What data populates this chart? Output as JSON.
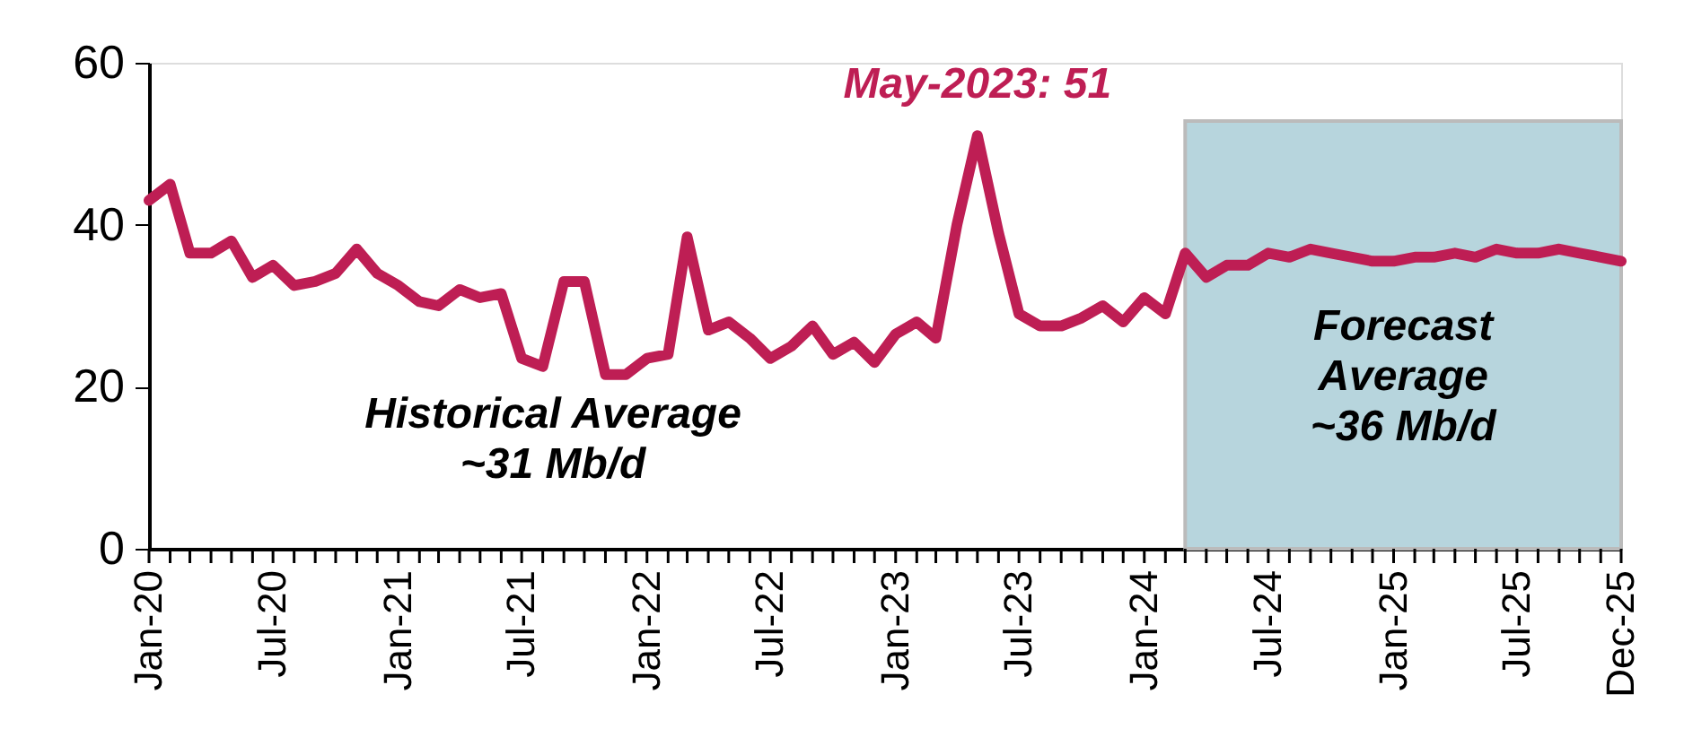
{
  "chart_data": {
    "type": "line",
    "x": [
      "2020-01",
      "2020-02",
      "2020-03",
      "2020-04",
      "2020-05",
      "2020-06",
      "2020-07",
      "2020-08",
      "2020-09",
      "2020-10",
      "2020-11",
      "2020-12",
      "2021-01",
      "2021-02",
      "2021-03",
      "2021-04",
      "2021-05",
      "2021-06",
      "2021-07",
      "2021-08",
      "2021-09",
      "2021-10",
      "2021-11",
      "2021-12",
      "2022-01",
      "2022-02",
      "2022-03",
      "2022-04",
      "2022-05",
      "2022-06",
      "2022-07",
      "2022-08",
      "2022-09",
      "2022-10",
      "2022-11",
      "2022-12",
      "2023-01",
      "2023-02",
      "2023-03",
      "2023-04",
      "2023-05",
      "2023-06",
      "2023-07",
      "2023-08",
      "2023-09",
      "2023-10",
      "2023-11",
      "2023-12",
      "2024-01",
      "2024-02",
      "2024-03",
      "2024-04",
      "2024-05",
      "2024-06",
      "2024-07",
      "2024-08",
      "2024-09",
      "2024-10",
      "2024-11",
      "2024-12",
      "2025-01",
      "2025-02",
      "2025-03",
      "2025-04",
      "2025-05",
      "2025-06",
      "2025-07",
      "2025-08",
      "2025-09",
      "2025-10",
      "2025-11",
      "2025-12"
    ],
    "series": [
      {
        "color": "#be1e54",
        "values": [
          43,
          45,
          36.5,
          36.5,
          38,
          33.5,
          35,
          32.5,
          33,
          34,
          37,
          34,
          32.5,
          30.5,
          30,
          32,
          31,
          31.5,
          23.5,
          22.5,
          33,
          33,
          21.5,
          21.5,
          23.5,
          24,
          38.5,
          27,
          28,
          26,
          23.5,
          25,
          27.5,
          24,
          25.5,
          23,
          26.5,
          28,
          26,
          40,
          51,
          39,
          29,
          27.5,
          27.5,
          28.5,
          30,
          28,
          31,
          29,
          36.5,
          33.5,
          35,
          35,
          36.5,
          36,
          37,
          36.5,
          36,
          35.5,
          35.5,
          36,
          36,
          36.5,
          36,
          37,
          36.5,
          36.5,
          37,
          36.5,
          36,
          35.5
        ]
      }
    ],
    "ylim": [
      0,
      60
    ],
    "yticks": [
      0,
      20,
      40,
      60
    ],
    "xlim": [
      "2020-01",
      "2025-12"
    ],
    "xticks": [
      {
        "value": "2020-01",
        "label": "Jan-20"
      },
      {
        "value": "2020-02",
        "label": null
      },
      {
        "value": "2020-03",
        "label": null
      },
      {
        "value": "2020-04",
        "label": null
      },
      {
        "value": "2020-05",
        "label": null
      },
      {
        "value": "2020-06",
        "label": null
      },
      {
        "value": "2020-07",
        "label": "Jul-20"
      },
      {
        "value": "2020-08",
        "label": null
      },
      {
        "value": "2020-09",
        "label": null
      },
      {
        "value": "2020-10",
        "label": null
      },
      {
        "value": "2020-11",
        "label": null
      },
      {
        "value": "2020-12",
        "label": null
      },
      {
        "value": "2021-01",
        "label": "Jan-21"
      },
      {
        "value": "2021-02",
        "label": null
      },
      {
        "value": "2021-03",
        "label": null
      },
      {
        "value": "2021-04",
        "label": null
      },
      {
        "value": "2021-05",
        "label": null
      },
      {
        "value": "2021-06",
        "label": null
      },
      {
        "value": "2021-07",
        "label": "Jul-21"
      },
      {
        "value": "2021-08",
        "label": null
      },
      {
        "value": "2021-09",
        "label": null
      },
      {
        "value": "2021-10",
        "label": null
      },
      {
        "value": "2021-11",
        "label": null
      },
      {
        "value": "2021-12",
        "label": null
      },
      {
        "value": "2022-01",
        "label": "Jan-22"
      },
      {
        "value": "2022-02",
        "label": null
      },
      {
        "value": "2022-03",
        "label": null
      },
      {
        "value": "2022-04",
        "label": null
      },
      {
        "value": "2022-05",
        "label": null
      },
      {
        "value": "2022-06",
        "label": null
      },
      {
        "value": "2022-07",
        "label": "Jul-22"
      },
      {
        "value": "2022-08",
        "label": null
      },
      {
        "value": "2022-09",
        "label": null
      },
      {
        "value": "2022-10",
        "label": null
      },
      {
        "value": "2022-11",
        "label": null
      },
      {
        "value": "2022-12",
        "label": null
      },
      {
        "value": "2023-01",
        "label": "Jan-23"
      },
      {
        "value": "2023-02",
        "label": null
      },
      {
        "value": "2023-03",
        "label": null
      },
      {
        "value": "2023-04",
        "label": null
      },
      {
        "value": "2023-05",
        "label": null
      },
      {
        "value": "2023-06",
        "label": null
      },
      {
        "value": "2023-07",
        "label": "Jul-23"
      },
      {
        "value": "2023-08",
        "label": null
      },
      {
        "value": "2023-09",
        "label": null
      },
      {
        "value": "2023-10",
        "label": null
      },
      {
        "value": "2023-11",
        "label": null
      },
      {
        "value": "2023-12",
        "label": null
      },
      {
        "value": "2024-01",
        "label": "Jan-24"
      },
      {
        "value": "2024-02",
        "label": null
      },
      {
        "value": "2024-03",
        "label": null
      },
      {
        "value": "2024-04",
        "label": null
      },
      {
        "value": "2024-05",
        "label": null
      },
      {
        "value": "2024-06",
        "label": null
      },
      {
        "value": "2024-07",
        "label": "Jul-24"
      },
      {
        "value": "2024-08",
        "label": null
      },
      {
        "value": "2024-09",
        "label": null
      },
      {
        "value": "2024-10",
        "label": null
      },
      {
        "value": "2024-11",
        "label": null
      },
      {
        "value": "2024-12",
        "label": null
      },
      {
        "value": "2025-01",
        "label": "Jan-25"
      },
      {
        "value": "2025-02",
        "label": null
      },
      {
        "value": "2025-03",
        "label": null
      },
      {
        "value": "2025-04",
        "label": null
      },
      {
        "value": "2025-05",
        "label": null
      },
      {
        "value": "2025-06",
        "label": null
      },
      {
        "value": "2025-07",
        "label": "Jul-25"
      },
      {
        "value": "2025-08",
        "label": null
      },
      {
        "value": "2025-09",
        "label": null
      },
      {
        "value": "2025-10",
        "label": null
      },
      {
        "value": "2025-11",
        "label": null
      },
      {
        "value": "2025-12",
        "label": "Dec-25"
      }
    ],
    "bands": [
      {
        "axis": "x",
        "from": "2024-03",
        "to": "2025-12",
        "label": "Forecast\nAverage\n~36 Mb/d",
        "color": "#b7d5dd"
      }
    ],
    "annotations": [
      {
        "text": "May-2023: 51",
        "x": "2023-05",
        "y": 51
      },
      "Historical Average\n~31 Mb/d"
    ],
    "grid": false,
    "legend": false,
    "marker": "none",
    "line_style": "solid"
  }
}
